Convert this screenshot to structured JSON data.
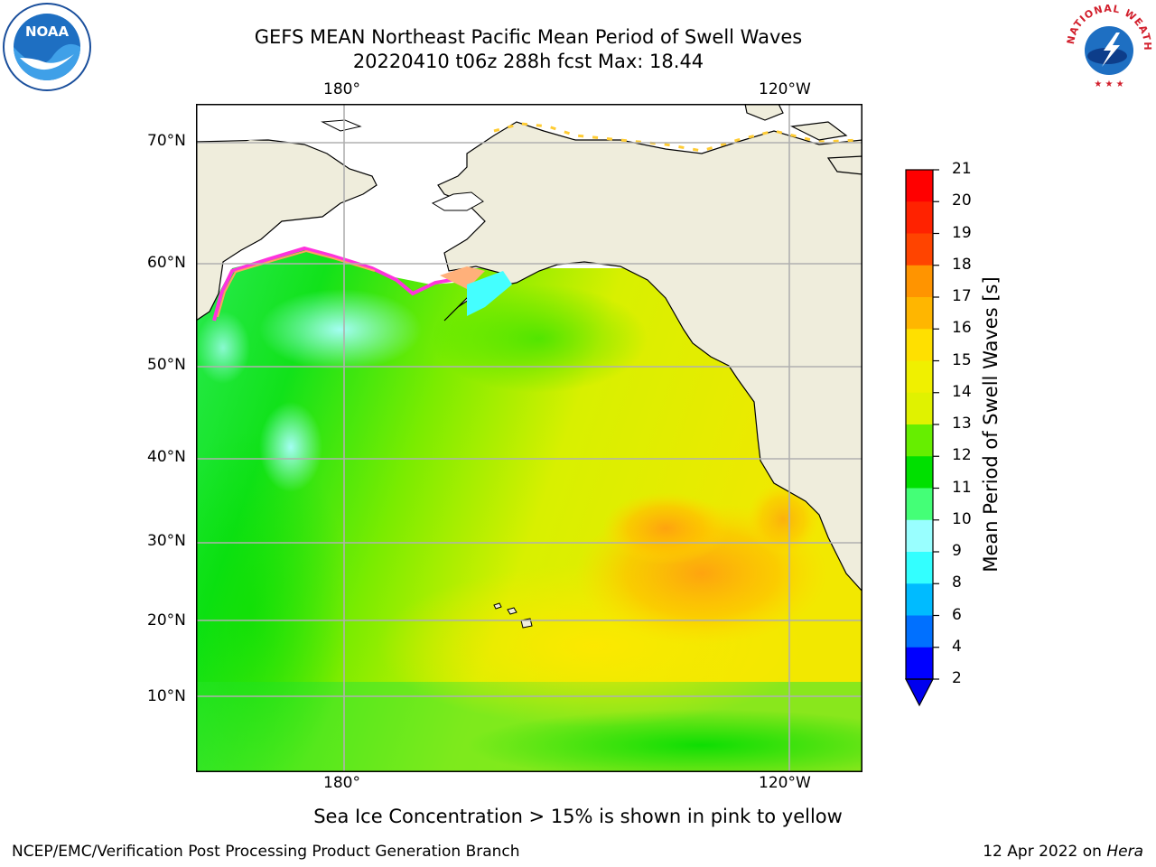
{
  "title": {
    "line1": "GEFS MEAN Northeast Pacific Mean Period of Swell Waves",
    "line2": "20220410 t06z 288h fcst   Max: 18.44"
  },
  "map": {
    "lon_labels": [
      "180°",
      "120°W"
    ],
    "lat_labels": [
      "70°N",
      "60°N",
      "50°N",
      "40°N",
      "30°N",
      "20°N",
      "10°N"
    ],
    "colors": {
      "land": "#efeddc",
      "ice_free_white": "#ffffff",
      "grid": "#b0b0b0",
      "coast": "#000000"
    }
  },
  "colorbar": {
    "label": "Mean Period of Swell Waves [s]",
    "ticks": [
      "21",
      "20",
      "19",
      "18",
      "17",
      "16",
      "15",
      "14",
      "13",
      "12",
      "11",
      "10",
      "9",
      "8",
      "6",
      "4",
      "2"
    ],
    "colors_top_to_bottom": [
      "#ff0000",
      "#ff2200",
      "#ff4400",
      "#ff6e00",
      "#ff9400",
      "#ffb600",
      "#ffe000",
      "#f0f000",
      "#e0f200",
      "#c0f000",
      "#66ee00",
      "#00e000",
      "#44ff77",
      "#99ffff",
      "#33ffff",
      "#00e8ff",
      "#00bbff",
      "#0070ff",
      "#0000ff"
    ],
    "extend_color": "#0000ee"
  },
  "caption": "Sea Ice Concentration > 15% is shown in pink to yellow",
  "footer": {
    "left": "NCEP/EMC/Verification Post Processing Product Generation Branch",
    "right_date": "12 Apr 2022 on ",
    "right_host": "Hera"
  },
  "logos": {
    "noaa_text": "NOAA",
    "nws_text": "NATIONAL WEATHER SERVICE"
  }
}
